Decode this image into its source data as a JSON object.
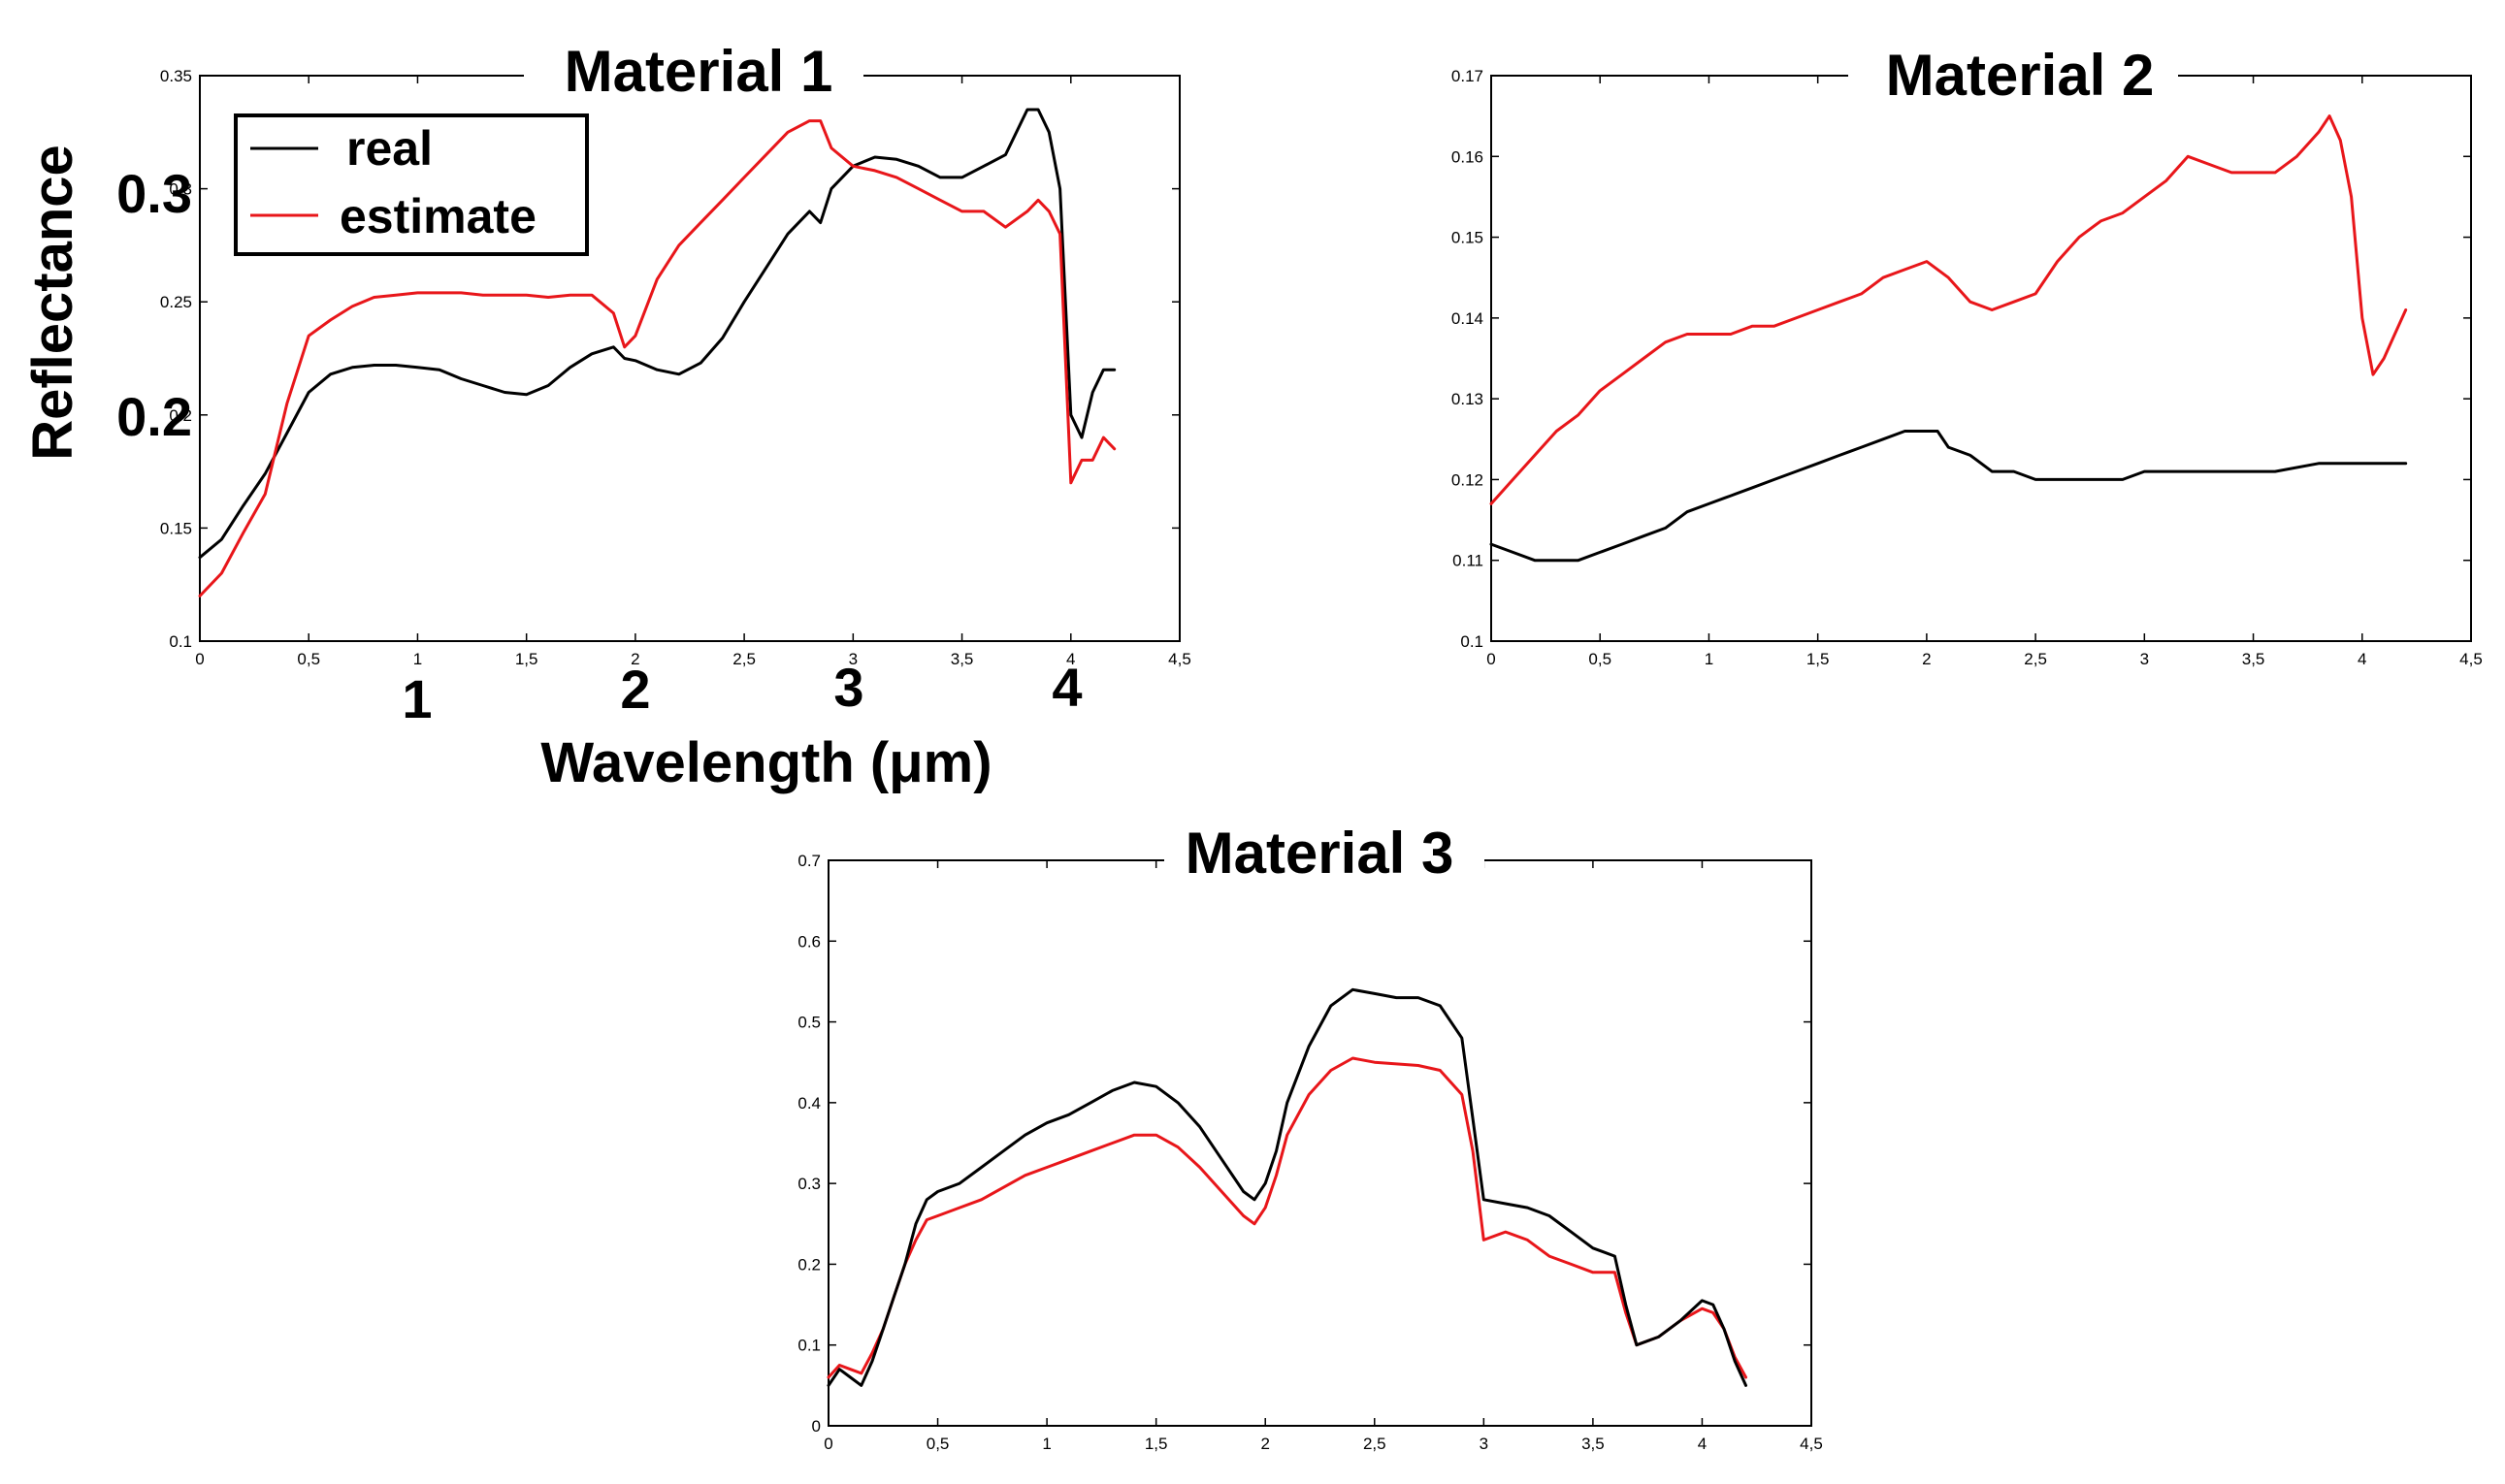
{
  "series_names": [
    "real",
    "estimate"
  ],
  "colors": {
    "real": "#000000",
    "estimate": "#e8161a"
  },
  "chart_data": [
    {
      "type": "line",
      "title": "Material 1",
      "xlabel": "Wavelength (μm)",
      "ylabel": "Reflectance",
      "xlim": [
        0,
        4.5
      ],
      "ylim": [
        0.1,
        0.35
      ],
      "xticks": [
        "0",
        "0,5",
        "1",
        "1,5",
        "2",
        "2,5",
        "3",
        "3,5",
        "4",
        "4,5"
      ],
      "yticks": [
        "0.1",
        "0.15",
        "0.2",
        "0.25",
        "0.3",
        "0.35"
      ],
      "big_xticks": [
        "1",
        "2",
        "3",
        "4"
      ],
      "big_yticks": [
        "0.2",
        "0.3"
      ],
      "legend": {
        "placement": "top-left",
        "entries": [
          "real",
          "estimate"
        ]
      },
      "series": [
        {
          "name": "real",
          "x": [
            0,
            0.1,
            0.2,
            0.3,
            0.4,
            0.5,
            0.6,
            0.7,
            0.8,
            0.9,
            1.0,
            1.1,
            1.2,
            1.3,
            1.4,
            1.5,
            1.6,
            1.7,
            1.8,
            1.9,
            1.95,
            2.0,
            2.1,
            2.2,
            2.3,
            2.4,
            2.5,
            2.6,
            2.7,
            2.8,
            2.85,
            2.9,
            3.0,
            3.1,
            3.2,
            3.3,
            3.4,
            3.5,
            3.6,
            3.7,
            3.8,
            3.85,
            3.9,
            3.95,
            4.0,
            4.05,
            4.1,
            4.15,
            4.2
          ],
          "values": [
            0.137,
            0.145,
            0.16,
            0.174,
            0.192,
            0.21,
            0.218,
            0.221,
            0.222,
            0.222,
            0.221,
            0.22,
            0.216,
            0.213,
            0.21,
            0.209,
            0.213,
            0.221,
            0.227,
            0.23,
            0.225,
            0.224,
            0.22,
            0.218,
            0.223,
            0.234,
            0.25,
            0.265,
            0.28,
            0.29,
            0.285,
            0.3,
            0.31,
            0.314,
            0.313,
            0.31,
            0.305,
            0.305,
            0.31,
            0.315,
            0.335,
            0.335,
            0.325,
            0.3,
            0.2,
            0.19,
            0.21,
            0.22,
            0.22
          ]
        },
        {
          "name": "estimate",
          "x": [
            0,
            0.1,
            0.2,
            0.3,
            0.4,
            0.5,
            0.6,
            0.7,
            0.8,
            0.9,
            1.0,
            1.1,
            1.2,
            1.3,
            1.4,
            1.5,
            1.6,
            1.7,
            1.8,
            1.9,
            1.95,
            2.0,
            2.1,
            2.2,
            2.3,
            2.4,
            2.5,
            2.6,
            2.7,
            2.8,
            2.85,
            2.9,
            3.0,
            3.1,
            3.2,
            3.3,
            3.4,
            3.5,
            3.6,
            3.7,
            3.8,
            3.85,
            3.9,
            3.95,
            4.0,
            4.05,
            4.1,
            4.15,
            4.2
          ],
          "values": [
            0.12,
            0.13,
            0.148,
            0.165,
            0.205,
            0.235,
            0.242,
            0.248,
            0.252,
            0.253,
            0.254,
            0.254,
            0.254,
            0.253,
            0.253,
            0.253,
            0.252,
            0.253,
            0.253,
            0.245,
            0.23,
            0.235,
            0.26,
            0.275,
            0.285,
            0.295,
            0.305,
            0.315,
            0.325,
            0.33,
            0.33,
            0.318,
            0.31,
            0.308,
            0.305,
            0.3,
            0.295,
            0.29,
            0.29,
            0.283,
            0.29,
            0.295,
            0.29,
            0.28,
            0.17,
            0.18,
            0.18,
            0.19,
            0.185
          ]
        }
      ]
    },
    {
      "type": "line",
      "title": "Material 2",
      "xlim": [
        0,
        4.5
      ],
      "ylim": [
        0.1,
        0.17
      ],
      "xticks": [
        "0",
        "0,5",
        "1",
        "1,5",
        "2",
        "2,5",
        "3",
        "3,5",
        "4",
        "4,5"
      ],
      "yticks": [
        "0.1",
        "0.11",
        "0.12",
        "0.13",
        "0.14",
        "0.15",
        "0.16",
        "0.17"
      ],
      "series": [
        {
          "name": "real",
          "x": [
            0,
            0.1,
            0.2,
            0.3,
            0.4,
            0.5,
            0.6,
            0.7,
            0.8,
            0.9,
            1.0,
            1.1,
            1.2,
            1.3,
            1.4,
            1.5,
            1.6,
            1.7,
            1.8,
            1.9,
            2.0,
            2.05,
            2.1,
            2.2,
            2.3,
            2.4,
            2.5,
            2.6,
            2.7,
            2.8,
            2.9,
            3.0,
            3.2,
            3.4,
            3.6,
            3.8,
            4.0,
            4.2
          ],
          "values": [
            0.112,
            0.111,
            0.11,
            0.11,
            0.11,
            0.111,
            0.112,
            0.113,
            0.114,
            0.116,
            0.117,
            0.118,
            0.119,
            0.12,
            0.121,
            0.122,
            0.123,
            0.124,
            0.125,
            0.126,
            0.126,
            0.126,
            0.124,
            0.123,
            0.121,
            0.121,
            0.12,
            0.12,
            0.12,
            0.12,
            0.12,
            0.121,
            0.121,
            0.121,
            0.121,
            0.122,
            0.122,
            0.122
          ]
        },
        {
          "name": "estimate",
          "x": [
            0,
            0.1,
            0.2,
            0.3,
            0.4,
            0.5,
            0.6,
            0.7,
            0.8,
            0.9,
            1.0,
            1.1,
            1.2,
            1.3,
            1.4,
            1.5,
            1.6,
            1.7,
            1.8,
            1.9,
            2.0,
            2.1,
            2.2,
            2.3,
            2.4,
            2.5,
            2.6,
            2.7,
            2.8,
            2.9,
            3.0,
            3.1,
            3.2,
            3.3,
            3.4,
            3.5,
            3.6,
            3.7,
            3.8,
            3.85,
            3.9,
            3.95,
            4.0,
            4.05,
            4.1,
            4.15,
            4.2
          ],
          "values": [
            0.117,
            0.12,
            0.123,
            0.126,
            0.128,
            0.131,
            0.133,
            0.135,
            0.137,
            0.138,
            0.138,
            0.138,
            0.139,
            0.139,
            0.14,
            0.141,
            0.142,
            0.143,
            0.145,
            0.146,
            0.147,
            0.145,
            0.142,
            0.141,
            0.142,
            0.143,
            0.147,
            0.15,
            0.152,
            0.153,
            0.155,
            0.157,
            0.16,
            0.159,
            0.158,
            0.158,
            0.158,
            0.16,
            0.163,
            0.165,
            0.162,
            0.155,
            0.14,
            0.133,
            0.135,
            0.138,
            0.141
          ]
        }
      ]
    },
    {
      "type": "line",
      "title": "Material 3",
      "xlim": [
        0,
        4.5
      ],
      "ylim": [
        0,
        0.7
      ],
      "xticks": [
        "0",
        "0,5",
        "1",
        "1,5",
        "2",
        "2,5",
        "3",
        "3,5",
        "4",
        "4,5"
      ],
      "yticks": [
        "0",
        "0.1",
        "0.2",
        "0.3",
        "0.4",
        "0.5",
        "0.6",
        "0.7"
      ],
      "series": [
        {
          "name": "real",
          "x": [
            0,
            0.05,
            0.1,
            0.15,
            0.2,
            0.25,
            0.3,
            0.35,
            0.4,
            0.45,
            0.5,
            0.6,
            0.7,
            0.8,
            0.9,
            1.0,
            1.1,
            1.2,
            1.3,
            1.4,
            1.5,
            1.6,
            1.7,
            1.8,
            1.9,
            1.95,
            2.0,
            2.05,
            2.1,
            2.2,
            2.3,
            2.4,
            2.5,
            2.6,
            2.7,
            2.8,
            2.9,
            2.95,
            3.0,
            3.1,
            3.2,
            3.3,
            3.4,
            3.5,
            3.6,
            3.65,
            3.7,
            3.8,
            3.9,
            4.0,
            4.05,
            4.1,
            4.15,
            4.2
          ],
          "values": [
            0.05,
            0.07,
            0.06,
            0.05,
            0.08,
            0.12,
            0.16,
            0.2,
            0.25,
            0.28,
            0.29,
            0.3,
            0.32,
            0.34,
            0.36,
            0.375,
            0.385,
            0.4,
            0.415,
            0.425,
            0.42,
            0.4,
            0.37,
            0.33,
            0.29,
            0.28,
            0.3,
            0.34,
            0.4,
            0.47,
            0.52,
            0.54,
            0.535,
            0.53,
            0.53,
            0.52,
            0.48,
            0.38,
            0.28,
            0.275,
            0.27,
            0.26,
            0.24,
            0.22,
            0.21,
            0.15,
            0.1,
            0.11,
            0.13,
            0.155,
            0.15,
            0.12,
            0.08,
            0.05
          ]
        },
        {
          "name": "estimate",
          "x": [
            0,
            0.05,
            0.1,
            0.15,
            0.2,
            0.25,
            0.3,
            0.35,
            0.4,
            0.45,
            0.5,
            0.6,
            0.7,
            0.8,
            0.9,
            1.0,
            1.1,
            1.2,
            1.3,
            1.4,
            1.5,
            1.6,
            1.7,
            1.8,
            1.9,
            1.95,
            2.0,
            2.05,
            2.1,
            2.2,
            2.3,
            2.4,
            2.5,
            2.6,
            2.7,
            2.8,
            2.9,
            2.95,
            3.0,
            3.1,
            3.2,
            3.3,
            3.4,
            3.5,
            3.6,
            3.65,
            3.7,
            3.8,
            3.9,
            4.0,
            4.05,
            4.1,
            4.15,
            4.2
          ],
          "values": [
            0.06,
            0.075,
            0.07,
            0.065,
            0.09,
            0.12,
            0.16,
            0.2,
            0.23,
            0.255,
            0.26,
            0.27,
            0.28,
            0.295,
            0.31,
            0.32,
            0.33,
            0.34,
            0.35,
            0.36,
            0.36,
            0.345,
            0.32,
            0.29,
            0.26,
            0.25,
            0.27,
            0.31,
            0.36,
            0.41,
            0.44,
            0.455,
            0.45,
            0.448,
            0.446,
            0.44,
            0.41,
            0.34,
            0.23,
            0.24,
            0.23,
            0.21,
            0.2,
            0.19,
            0.19,
            0.14,
            0.1,
            0.11,
            0.13,
            0.145,
            0.14,
            0.12,
            0.085,
            0.06
          ]
        }
      ]
    }
  ]
}
